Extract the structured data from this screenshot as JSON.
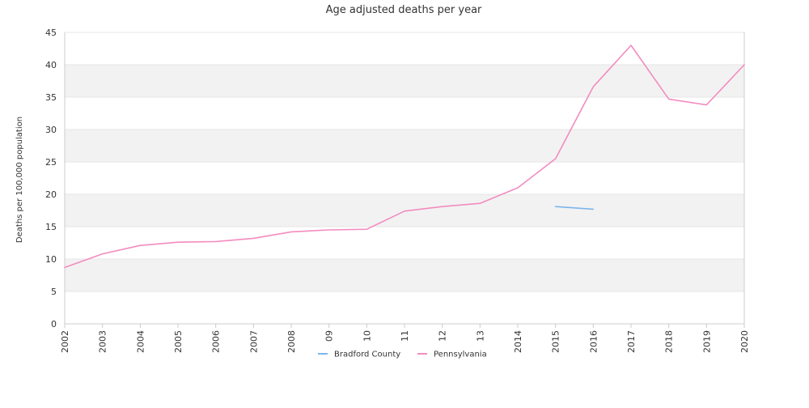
{
  "chart_data": {
    "type": "line",
    "title": "Age adjusted deaths per year",
    "xlabel": "",
    "ylabel": "Deaths per 100,000 population",
    "x": [
      "2002",
      "2003",
      "2004",
      "2005",
      "2006",
      "2007",
      "2008",
      "09",
      "10",
      "11",
      "12",
      "13",
      "2014",
      "2015",
      "2016",
      "2017",
      "2018",
      "2019",
      "2020"
    ],
    "ylim": [
      0,
      45
    ],
    "yticks": [
      0,
      5,
      10,
      15,
      20,
      25,
      30,
      35,
      40,
      45
    ],
    "grid": "horizontal bands",
    "legend_position": "bottom",
    "series": [
      {
        "name": "Bradford County",
        "color": "#7cb5ec",
        "values": [
          null,
          null,
          null,
          null,
          null,
          null,
          null,
          null,
          null,
          null,
          null,
          null,
          null,
          18.1,
          17.7,
          null,
          null,
          null,
          null
        ]
      },
      {
        "name": "Pennsylvania",
        "color": "#f28cc0",
        "values": [
          8.7,
          10.8,
          12.1,
          12.6,
          12.7,
          13.2,
          14.2,
          14.5,
          14.6,
          17.4,
          18.1,
          18.6,
          21.0,
          25.5,
          36.6,
          43.0,
          34.7,
          33.8,
          40.0
        ]
      }
    ]
  },
  "colors": {
    "band": "#f2f2f2",
    "gridline": "#e6e6e6",
    "axis": "#cccccc",
    "text": "#333333"
  }
}
